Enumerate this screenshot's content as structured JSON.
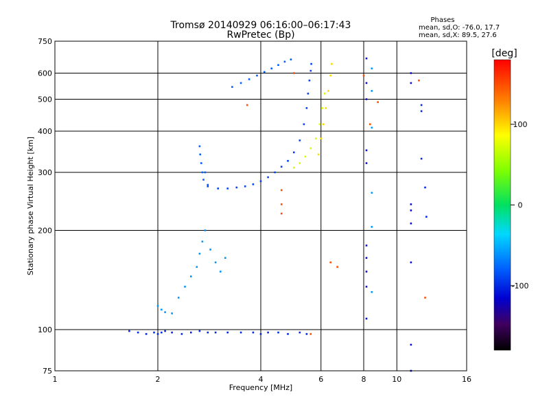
{
  "chart_data": {
    "type": "scatter",
    "title": "Tromsø 20140929 06:16:00–06:17:43",
    "subtitle": "RwPretec (Bp)",
    "xlabel": "Frequency [MHz]",
    "ylabel": "Stationary phase Virtual Height [km]",
    "x_scale": "log",
    "y_scale": "log",
    "xlim": [
      1,
      16
    ],
    "ylim": [
      75,
      750
    ],
    "x_ticks": [
      1,
      2,
      4,
      6,
      8,
      10,
      16
    ],
    "y_ticks": [
      75,
      100,
      200,
      300,
      400,
      500,
      600,
      750
    ],
    "grid": true,
    "stats": {
      "heading": "Phases",
      "line1": "mean, sd,O: -76.0, 17.7",
      "line2": "mean, sd,X: 89.5, 27.6"
    },
    "colorbar": {
      "label": "[deg]",
      "range": [
        -180,
        180
      ],
      "ticks": [
        100,
        0,
        -100
      ]
    },
    "traces": [
      {
        "freq": [
          1.65,
          1.75,
          1.85,
          1.95,
          2.0,
          2.05,
          2.1,
          2.2,
          2.35,
          2.5,
          2.65,
          2.8,
          2.95,
          3.2,
          3.5,
          3.8,
          4.0,
          4.2,
          4.5,
          4.8,
          5.2,
          5.45
        ],
        "height": [
          99,
          98,
          97,
          98,
          97,
          98,
          99,
          98,
          97,
          98,
          99,
          98,
          98,
          98,
          98,
          98,
          97,
          98,
          98,
          97,
          98,
          97
        ],
        "phase": -100
      },
      {
        "freq": [
          2.0,
          2.05,
          2.1,
          2.2,
          2.3,
          2.4,
          2.5,
          2.6,
          2.65,
          2.7,
          2.75,
          2.85,
          2.95,
          3.05,
          3.15
        ],
        "height": [
          118,
          115,
          113,
          112,
          125,
          135,
          145,
          155,
          170,
          185,
          200,
          175,
          160,
          150,
          165
        ],
        "phase": -60
      },
      {
        "freq": [
          2.65,
          2.66,
          2.68,
          2.7,
          2.72,
          2.75,
          2.8
        ],
        "height": [
          360,
          340,
          320,
          300,
          285,
          300,
          275
        ],
        "phase": -80
      },
      {
        "freq": [
          2.8,
          3.0,
          3.2,
          3.4,
          3.6,
          3.8,
          4.0,
          4.2,
          4.4,
          4.6,
          4.8,
          5.0,
          5.2,
          5.35,
          5.45,
          5.5,
          5.55,
          5.6,
          5.62
        ],
        "height": [
          272,
          268,
          268,
          270,
          272,
          276,
          282,
          290,
          300,
          312,
          325,
          345,
          375,
          420,
          470,
          520,
          570,
          610,
          640
        ],
        "phase": -90
      },
      {
        "freq": [
          3.3,
          3.5,
          3.7,
          3.9,
          4.1,
          4.3,
          4.5,
          4.7,
          4.9
        ],
        "height": [
          545,
          560,
          575,
          590,
          605,
          620,
          635,
          650,
          660
        ],
        "phase": -80
      },
      {
        "freq": [
          5.0,
          5.2,
          5.4,
          5.6,
          5.8,
          5.95,
          6.05,
          6.15
        ],
        "height": [
          310,
          320,
          335,
          355,
          380,
          420,
          470,
          520
        ],
        "phase": 70
      },
      {
        "freq": [
          5.9,
          6.0,
          6.1,
          6.2,
          6.3,
          6.4,
          6.45
        ],
        "height": [
          340,
          380,
          420,
          470,
          530,
          590,
          640
        ],
        "phase": 100
      },
      {
        "freq": [
          8.15,
          8.15,
          8.15,
          8.15,
          8.15,
          8.15,
          8.15,
          8.15,
          8.15,
          8.15
        ],
        "height": [
          665,
          560,
          500,
          350,
          320,
          180,
          165,
          150,
          135,
          108
        ],
        "phase": -110
      },
      {
        "freq": [
          8.45,
          8.45,
          8.45,
          8.45,
          8.45,
          8.45
        ],
        "height": [
          620,
          530,
          410,
          260,
          205,
          130
        ],
        "phase": -60
      },
      {
        "freq": [
          11.0,
          11.0,
          11.0,
          11.0,
          11.0,
          11.0,
          11.0,
          11.0
        ],
        "height": [
          600,
          560,
          240,
          230,
          210,
          160,
          90,
          75
        ],
        "phase": -110
      },
      {
        "freq": [
          11.8,
          11.8,
          11.8,
          12.1,
          12.2
        ],
        "height": [
          480,
          460,
          330,
          270,
          220
        ],
        "phase": -100
      },
      {
        "freq": [
          3.65,
          4.6,
          4.6,
          4.6,
          5.0,
          5.6,
          6.4,
          6.7,
          8.0,
          8.35,
          8.8,
          11.6,
          12.1
        ],
        "height": [
          480,
          265,
          240,
          225,
          600,
          97,
          160,
          155,
          590,
          420,
          490,
          570,
          125
        ],
        "phase": 150
      }
    ]
  }
}
